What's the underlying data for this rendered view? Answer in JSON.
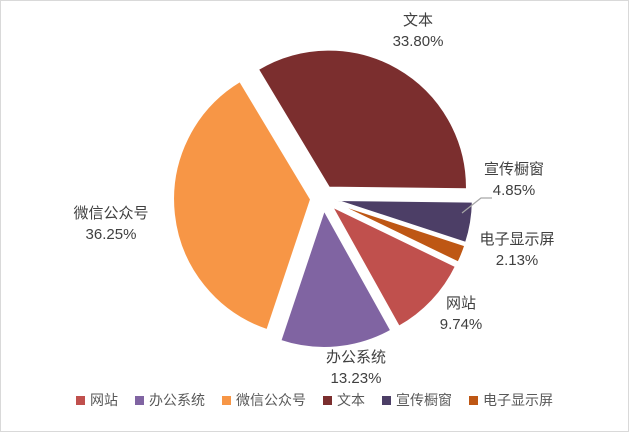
{
  "chart": {
    "background": "#FFFFFF",
    "border_color": "#D9D9D9",
    "label_color": "#404040",
    "legend_text_color": "#595959",
    "leader_line_color": "#A6A6A6"
  },
  "chart_data": {
    "type": "pie",
    "title": "",
    "legend_position": "bottom",
    "start_angle_deg": -31,
    "exploded": true,
    "slices": [
      {
        "key": "website",
        "label": "网站",
        "value": 9.74,
        "pct_label": "9.74%",
        "color": "#C0504D"
      },
      {
        "key": "office-system",
        "label": "办公系统",
        "value": 13.23,
        "pct_label": "13.23%",
        "color": "#8064A2"
      },
      {
        "key": "wechat-account",
        "label": "微信公众号",
        "value": 36.25,
        "pct_label": "36.25%",
        "color": "#F79646"
      },
      {
        "key": "text",
        "label": "文本",
        "value": 33.8,
        "pct_label": "33.80%",
        "color": "#7B2E2E"
      },
      {
        "key": "publicity-window",
        "label": "宣传橱窗",
        "value": 4.85,
        "pct_label": "4.85%",
        "color": "#4C3E66"
      },
      {
        "key": "electronic-display",
        "label": "电子显示屏",
        "value": 2.13,
        "pct_label": "2.13%",
        "color": "#BE5714"
      }
    ],
    "draw_order": [
      "文本",
      "宣传橱窗",
      "电子显示屏",
      "网站",
      "办公系统",
      "微信公众号"
    ],
    "legend_order": [
      "网站",
      "办公系统",
      "微信公众号",
      "文本",
      "宣传橱窗",
      "电子显示屏"
    ]
  }
}
